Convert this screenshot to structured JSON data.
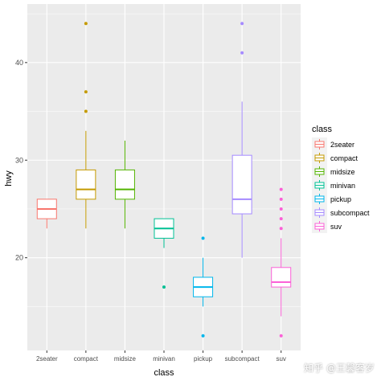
{
  "chart_data": {
    "type": "boxplot",
    "title": "",
    "xlabel": "class",
    "ylabel": "hwy",
    "ylim": [
      10.5,
      46
    ],
    "yticks": [
      20,
      30,
      40
    ],
    "grid": true,
    "legend": {
      "title": "class",
      "placement": "right",
      "entries": [
        "2seater",
        "compact",
        "midsize",
        "minivan",
        "pickup",
        "subcompact",
        "suv"
      ]
    },
    "categories": [
      "2seater",
      "compact",
      "midsize",
      "minivan",
      "pickup",
      "subcompact",
      "suv"
    ],
    "colors": [
      "#F8766D",
      "#C49A00",
      "#53B400",
      "#00C094",
      "#00B6EB",
      "#A58AFF",
      "#FB61D7"
    ],
    "boxes": [
      {
        "category": "2seater",
        "min": 23,
        "q1": 24,
        "median": 25,
        "q3": 26,
        "max": 26,
        "outliers": []
      },
      {
        "category": "compact",
        "min": 23,
        "q1": 26,
        "median": 27,
        "q3": 29,
        "max": 33,
        "outliers": [
          35,
          37,
          44
        ]
      },
      {
        "category": "midsize",
        "min": 23,
        "q1": 26,
        "median": 27,
        "q3": 29,
        "max": 32,
        "outliers": []
      },
      {
        "category": "minivan",
        "min": 21,
        "q1": 22,
        "median": 23,
        "q3": 24,
        "max": 24,
        "outliers": [
          17
        ]
      },
      {
        "category": "pickup",
        "min": 15,
        "q1": 16,
        "median": 17,
        "q3": 18,
        "max": 20,
        "outliers": [
          12,
          22
        ]
      },
      {
        "category": "subcompact",
        "min": 20,
        "q1": 24.5,
        "median": 26,
        "q3": 30.5,
        "max": 36,
        "outliers": [
          41,
          44
        ]
      },
      {
        "category": "suv",
        "min": 14,
        "q1": 17,
        "median": 17.5,
        "q3": 19,
        "max": 22,
        "outliers": [
          12,
          23,
          24,
          25,
          26,
          27
        ]
      }
    ]
  },
  "watermark": "知乎 @王馨客岁"
}
